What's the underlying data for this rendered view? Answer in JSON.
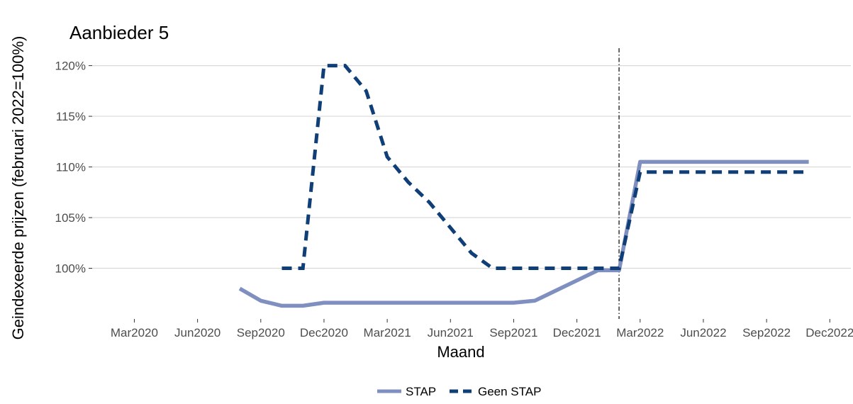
{
  "chart_data": {
    "type": "line",
    "title": "Aanbieder 5",
    "xlabel": "Maand",
    "ylabel": "Geindexeerde prijzen (februari 2022=100%)",
    "x_ticks": [
      "Mar2020",
      "Jun2020",
      "Sep2020",
      "Dec2020",
      "Mar2021",
      "Jun2021",
      "Sep2021",
      "Dec2021",
      "Mar2022",
      "Jun2022",
      "Sep2022",
      "Dec2022"
    ],
    "y_ticks": [
      "100%",
      "105%",
      "110%",
      "115%",
      "120%"
    ],
    "ylim": [
      95,
      122
    ],
    "xlim": [
      "2020-01",
      "2023-01"
    ],
    "reference_line": {
      "x": "2022-02",
      "style": "dotdash"
    },
    "grid": "horizontal",
    "legend_position": "bottom",
    "colors": {
      "STAP": "#7f8fbf",
      "Geen STAP": "#103f78"
    },
    "series": [
      {
        "name": "STAP",
        "style": "solid",
        "points": [
          [
            "2020-08",
            98.0
          ],
          [
            "2020-09",
            96.8
          ],
          [
            "2020-10",
            96.3
          ],
          [
            "2020-11",
            96.3
          ],
          [
            "2020-12",
            96.6
          ],
          [
            "2021-01",
            96.6
          ],
          [
            "2021-02",
            96.6
          ],
          [
            "2021-03",
            96.6
          ],
          [
            "2021-04",
            96.6
          ],
          [
            "2021-05",
            96.6
          ],
          [
            "2021-06",
            96.6
          ],
          [
            "2021-07",
            96.6
          ],
          [
            "2021-08",
            96.6
          ],
          [
            "2021-09",
            96.6
          ],
          [
            "2021-10",
            96.8
          ],
          [
            "2021-11",
            97.8
          ],
          [
            "2021-12",
            98.8
          ],
          [
            "2022-01",
            99.8
          ],
          [
            "2022-02",
            99.8
          ],
          [
            "2022-03",
            110.5
          ],
          [
            "2022-04",
            110.5
          ],
          [
            "2022-05",
            110.5
          ],
          [
            "2022-06",
            110.5
          ],
          [
            "2022-07",
            110.5
          ],
          [
            "2022-08",
            110.5
          ],
          [
            "2022-09",
            110.5
          ],
          [
            "2022-10",
            110.5
          ],
          [
            "2022-11",
            110.5
          ]
        ]
      },
      {
        "name": "Geen STAP",
        "style": "dashed",
        "points": [
          [
            "2020-10",
            100.0
          ],
          [
            "2020-11",
            100.0
          ],
          [
            "2020-12",
            120.0
          ],
          [
            "2021-01",
            120.0
          ],
          [
            "2021-02",
            117.5
          ],
          [
            "2021-03",
            111.0
          ],
          [
            "2021-04",
            108.5
          ],
          [
            "2021-05",
            106.5
          ],
          [
            "2021-06",
            104.0
          ],
          [
            "2021-07",
            101.5
          ],
          [
            "2021-08",
            100.0
          ],
          [
            "2021-09",
            100.0
          ],
          [
            "2021-10",
            100.0
          ],
          [
            "2021-11",
            100.0
          ],
          [
            "2021-12",
            100.0
          ],
          [
            "2022-01",
            100.0
          ],
          [
            "2022-02",
            100.0
          ],
          [
            "2022-03",
            109.5
          ],
          [
            "2022-04",
            109.5
          ],
          [
            "2022-05",
            109.5
          ],
          [
            "2022-06",
            109.5
          ],
          [
            "2022-07",
            109.5
          ],
          [
            "2022-08",
            109.5
          ],
          [
            "2022-09",
            109.5
          ],
          [
            "2022-10",
            109.5
          ],
          [
            "2022-11",
            109.5
          ]
        ]
      }
    ]
  }
}
